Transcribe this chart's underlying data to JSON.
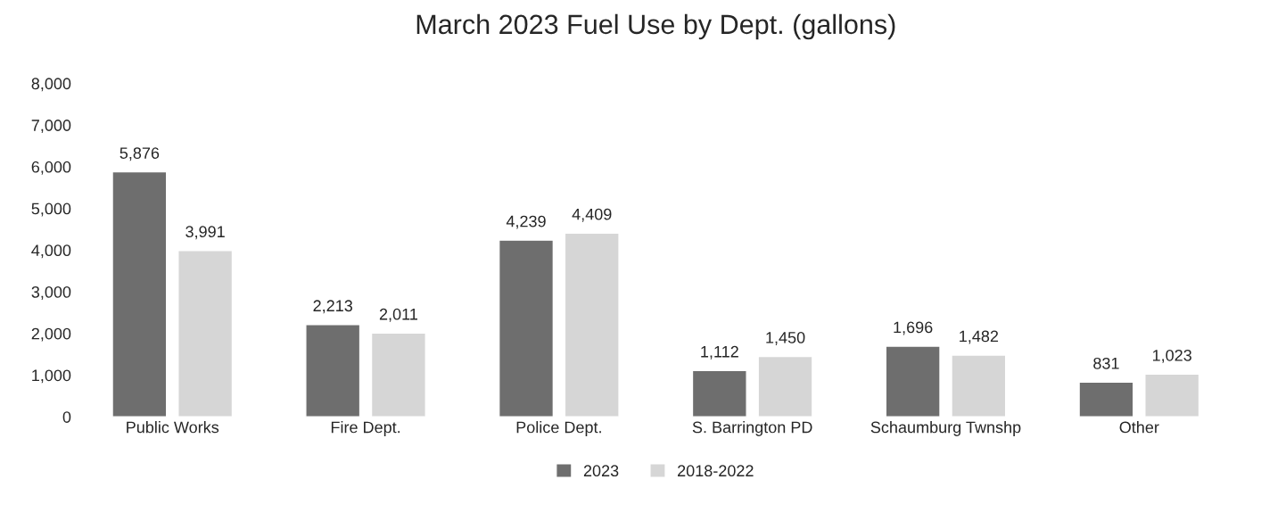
{
  "chart_data": {
    "type": "bar",
    "title": "March 2023 Fuel Use by Dept. (gallons)",
    "categories": [
      "Public Works",
      "Fire Dept.",
      "Police Dept.",
      "S. Barrington PD",
      "Schaumburg Twnshp",
      "Other"
    ],
    "series": [
      {
        "name": "2023",
        "color": "#6e6e6e",
        "values": [
          5876,
          2213,
          4239,
          1112,
          1696,
          831
        ],
        "value_labels": [
          "5,876",
          "2,213",
          "4,239",
          "1,112",
          "1,696",
          "831"
        ]
      },
      {
        "name": "2018-2022",
        "color": "#d6d6d6",
        "values": [
          3991,
          2011,
          4409,
          1450,
          1482,
          1023
        ],
        "value_labels": [
          "3,991",
          "2,011",
          "4,409",
          "1,450",
          "1,482",
          "1,023"
        ]
      }
    ],
    "ylim": [
      0,
      8000
    ],
    "yticks": [
      {
        "value": 0,
        "label": "0"
      },
      {
        "value": 1000,
        "label": "1,000"
      },
      {
        "value": 2000,
        "label": "2,000"
      },
      {
        "value": 3000,
        "label": "3,000"
      },
      {
        "value": 4000,
        "label": "4,000"
      },
      {
        "value": 5000,
        "label": "5,000"
      },
      {
        "value": 6000,
        "label": "6,000"
      },
      {
        "value": 7000,
        "label": "7,000"
      },
      {
        "value": 8000,
        "label": "8,000"
      }
    ],
    "grid": false,
    "legend": "bottom"
  }
}
